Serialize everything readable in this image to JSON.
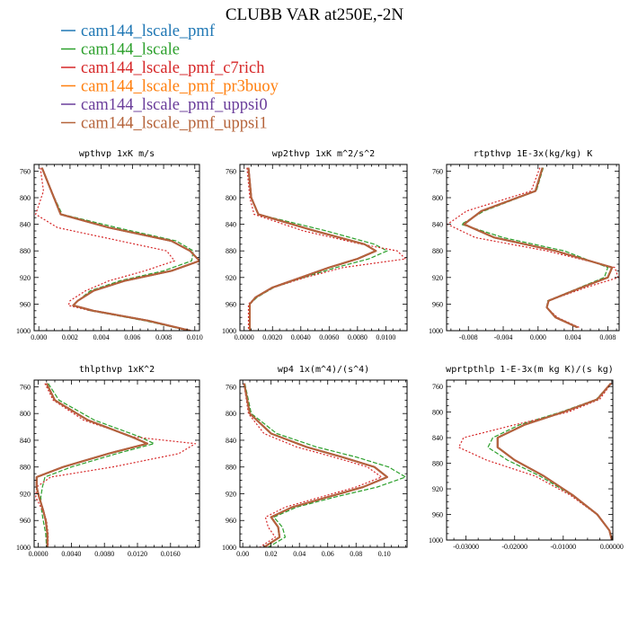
{
  "title": "CLUBB VAR at250E,-2N",
  "legend": [
    {
      "label": "cam144_lscale_pmf",
      "color": "#1f77b4",
      "dash": "solid"
    },
    {
      "label": "cam144_lscale",
      "color": "#2ca02c",
      "dash": "dashed"
    },
    {
      "label": "cam144_lscale_pmf_c7rich",
      "color": "#d62728",
      "dash": "dotted"
    },
    {
      "label": "cam144_lscale_pmf_pr3buoy",
      "color": "#ff7f0e",
      "dash": "solid"
    },
    {
      "label": "cam144_lscale_pmf_uppsi0",
      "color": "#6a3d9a",
      "dash": "solid"
    },
    {
      "label": "cam144_lscale_pmf_uppsi1",
      "color": "#b5633a",
      "dash": "solid"
    }
  ],
  "chart_data": [
    {
      "type": "line",
      "title": "wpthvp  1xK m/s",
      "xlim": [
        -0.0003,
        0.0103
      ],
      "xticks": [
        0.0,
        0.002,
        0.004,
        0.006,
        0.008,
        0.01
      ],
      "xticklabels": [
        "0.000",
        "0.002",
        "0.004",
        "0.006",
        "0.008",
        "0.010"
      ],
      "ylim": [
        1000,
        750
      ],
      "yticks": [
        760,
        800,
        840,
        880,
        920,
        960,
        1000
      ],
      "yticklabels": [
        "760",
        "800",
        "840",
        "880",
        "920",
        "960",
        "1000"
      ],
      "y": [
        755,
        790,
        825,
        845,
        865,
        880,
        895,
        910,
        925,
        940,
        955,
        962,
        970,
        985,
        1000
      ],
      "series": [
        {
          "name": "cam144_lscale_pmf",
          "values": [
            0.0002,
            0.0008,
            0.0014,
            0.0045,
            0.0085,
            0.0097,
            0.0103,
            0.0085,
            0.0055,
            0.0035,
            0.0025,
            0.0022,
            0.0035,
            0.007,
            0.0097
          ]
        },
        {
          "name": "cam144_lscale",
          "values": [
            0.0002,
            0.0008,
            0.0015,
            0.005,
            0.0088,
            0.0099,
            0.0098,
            0.008,
            0.0052,
            0.0033,
            0.0025,
            0.0022,
            0.0033,
            0.0068,
            0.0096
          ]
        },
        {
          "name": "cam144_lscale_pmf_c7rich",
          "values": [
            0.0001,
            0.0003,
            -0.0002,
            0.0012,
            0.0052,
            0.0082,
            0.0087,
            0.0068,
            0.0045,
            0.003,
            0.002,
            0.0019,
            0.0033,
            0.007,
            0.0098
          ]
        },
        {
          "name": "cam144_lscale_pmf_pr3buoy",
          "values": [
            0.0002,
            0.0008,
            0.0014,
            0.0045,
            0.0085,
            0.0097,
            0.0103,
            0.0085,
            0.0055,
            0.0035,
            0.0025,
            0.0022,
            0.0035,
            0.007,
            0.0097
          ]
        },
        {
          "name": "cam144_lscale_pmf_uppsi0",
          "values": [
            0.0002,
            0.0008,
            0.0014,
            0.0045,
            0.0085,
            0.0097,
            0.0103,
            0.0085,
            0.0055,
            0.0035,
            0.0025,
            0.0022,
            0.0035,
            0.007,
            0.0097
          ]
        },
        {
          "name": "cam144_lscale_pmf_uppsi1",
          "values": [
            0.0002,
            0.0008,
            0.0014,
            0.0045,
            0.0085,
            0.0097,
            0.0103,
            0.0085,
            0.0055,
            0.0035,
            0.0025,
            0.0022,
            0.0035,
            0.007,
            0.0097
          ]
        }
      ]
    },
    {
      "type": "line",
      "title": "wp2thvp  1xK m^2/s^2",
      "xlim": [
        -0.0003,
        0.0115
      ],
      "xticks": [
        0.0,
        0.002,
        0.004,
        0.006,
        0.008,
        0.01
      ],
      "xticklabels": [
        "0.0000",
        "0.0020",
        "0.0040",
        "0.0060",
        "0.0080",
        "0.0100"
      ],
      "ylim": [
        1000,
        750
      ],
      "yticks": [
        760,
        800,
        840,
        880,
        920,
        960,
        1000
      ],
      "yticklabels": [
        "760",
        "800",
        "840",
        "880",
        "920",
        "960",
        "1000"
      ],
      "y": [
        755,
        800,
        825,
        850,
        870,
        880,
        892,
        905,
        920,
        935,
        950,
        960,
        980,
        1000
      ],
      "series": [
        {
          "name": "cam144_lscale_pmf",
          "values": [
            0.0003,
            0.0005,
            0.001,
            0.005,
            0.0085,
            0.0093,
            0.008,
            0.006,
            0.004,
            0.002,
            0.0008,
            0.0004,
            0.0004,
            0.0004
          ]
        },
        {
          "name": "cam144_lscale",
          "values": [
            0.0003,
            0.0005,
            0.001,
            0.0058,
            0.0092,
            0.0101,
            0.0088,
            0.0065,
            0.0042,
            0.0021,
            0.0009,
            0.0004,
            0.0004,
            0.0004
          ]
        },
        {
          "name": "cam144_lscale_pmf_c7rich",
          "values": [
            0.0002,
            0.0004,
            0.0007,
            0.0042,
            0.0083,
            0.0108,
            0.0114,
            0.007,
            0.0043,
            0.0021,
            0.0008,
            0.0003,
            0.0003,
            0.0003
          ]
        },
        {
          "name": "cam144_lscale_pmf_pr3buoy",
          "values": [
            0.0003,
            0.0005,
            0.001,
            0.005,
            0.0085,
            0.0093,
            0.008,
            0.006,
            0.004,
            0.002,
            0.0008,
            0.0004,
            0.0004,
            0.0004
          ]
        },
        {
          "name": "cam144_lscale_pmf_uppsi0",
          "values": [
            0.0003,
            0.0005,
            0.001,
            0.005,
            0.0085,
            0.0093,
            0.008,
            0.006,
            0.004,
            0.002,
            0.0008,
            0.0004,
            0.0004,
            0.0004
          ]
        },
        {
          "name": "cam144_lscale_pmf_uppsi1",
          "values": [
            0.0003,
            0.0005,
            0.001,
            0.005,
            0.0085,
            0.0093,
            0.008,
            0.006,
            0.004,
            0.002,
            0.0008,
            0.0004,
            0.0004,
            0.0004
          ]
        }
      ]
    },
    {
      "type": "line",
      "title": "rtpthvp  1E-3x(kg/kg) K",
      "xlim": [
        -0.0105,
        0.0093
      ],
      "xticks": [
        -0.008,
        -0.004,
        0.0,
        0.004,
        0.008
      ],
      "xticklabels": [
        "-0.008",
        "-0.004",
        "0.000",
        "0.004",
        "0.008"
      ],
      "ylim": [
        1000,
        750
      ],
      "yticks": [
        760,
        800,
        840,
        880,
        920,
        960,
        1000
      ],
      "yticklabels": [
        "760",
        "800",
        "840",
        "880",
        "920",
        "960",
        "1000"
      ],
      "y": [
        755,
        790,
        820,
        840,
        860,
        880,
        905,
        920,
        935,
        955,
        965,
        980,
        995
      ],
      "series": [
        {
          "name": "cam144_lscale_pmf",
          "values": [
            0.0005,
            -0.0003,
            -0.0065,
            -0.0085,
            -0.005,
            0.002,
            0.0085,
            0.008,
            0.005,
            0.0012,
            0.001,
            0.002,
            0.0045
          ]
        },
        {
          "name": "cam144_lscale",
          "values": [
            0.0006,
            -0.0002,
            -0.0062,
            -0.0088,
            -0.004,
            0.003,
            0.008,
            0.0076,
            0.0048,
            0.0011,
            0.001,
            0.0021,
            0.0046
          ]
        },
        {
          "name": "cam144_lscale_pmf_c7rich",
          "values": [
            0.0002,
            -0.0008,
            -0.0082,
            -0.0104,
            -0.0072,
            0.001,
            0.0088,
            0.0092,
            0.0055,
            0.0012,
            0.001,
            0.0022,
            0.0047
          ]
        },
        {
          "name": "cam144_lscale_pmf_pr3buoy",
          "values": [
            0.0005,
            -0.0003,
            -0.0065,
            -0.0085,
            -0.005,
            0.002,
            0.0085,
            0.008,
            0.005,
            0.0012,
            0.001,
            0.002,
            0.0045
          ]
        },
        {
          "name": "cam144_lscale_pmf_uppsi0",
          "values": [
            0.0005,
            -0.0003,
            -0.0065,
            -0.0085,
            -0.005,
            0.002,
            0.0085,
            0.008,
            0.005,
            0.0012,
            0.001,
            0.002,
            0.0045
          ]
        },
        {
          "name": "cam144_lscale_pmf_uppsi1",
          "values": [
            0.0005,
            -0.0003,
            -0.0065,
            -0.0085,
            -0.005,
            0.002,
            0.0085,
            0.008,
            0.005,
            0.0012,
            0.001,
            0.002,
            0.0045
          ]
        }
      ]
    },
    {
      "type": "line",
      "title": "thlpthvp  1xK^2",
      "xlim": [
        -0.0005,
        0.0195
      ],
      "xticks": [
        0.0,
        0.004,
        0.008,
        0.012,
        0.016
      ],
      "xticklabels": [
        "0.0000",
        "0.0040",
        "0.0080",
        "0.0120",
        "0.0160"
      ],
      "ylim": [
        1000,
        750
      ],
      "yticks": [
        760,
        800,
        840,
        880,
        920,
        960,
        1000
      ],
      "yticklabels": [
        "760",
        "800",
        "840",
        "880",
        "920",
        "960",
        "1000"
      ],
      "y": [
        755,
        780,
        810,
        835,
        845,
        860,
        880,
        895,
        910,
        925,
        945,
        960,
        980,
        1000
      ],
      "series": [
        {
          "name": "cam144_lscale_pmf",
          "values": [
            0.001,
            0.002,
            0.006,
            0.0113,
            0.0132,
            0.0085,
            0.003,
            -0.0002,
            -0.0002,
            0.0001,
            0.0006,
            0.0009,
            0.0011,
            0.0011
          ]
        },
        {
          "name": "cam144_lscale",
          "values": [
            0.0012,
            0.0025,
            0.0068,
            0.0123,
            0.014,
            0.0095,
            0.004,
            0.0008,
            0.0005,
            0.0003,
            0.0004,
            0.0006,
            0.0009,
            0.001
          ]
        },
        {
          "name": "cam144_lscale_pmf_c7rich",
          "values": [
            0.0008,
            0.0018,
            0.0055,
            0.0115,
            0.019,
            0.017,
            0.009,
            0.0015,
            -0.0002,
            -0.0003,
            0.0005,
            0.001,
            0.0012,
            0.0012
          ]
        },
        {
          "name": "cam144_lscale_pmf_pr3buoy",
          "values": [
            0.001,
            0.002,
            0.006,
            0.0113,
            0.0132,
            0.0085,
            0.003,
            -0.0002,
            -0.0002,
            0.0001,
            0.0006,
            0.0009,
            0.0011,
            0.0011
          ]
        },
        {
          "name": "cam144_lscale_pmf_uppsi0",
          "values": [
            0.001,
            0.002,
            0.006,
            0.0113,
            0.0132,
            0.0085,
            0.003,
            -0.0002,
            -0.0002,
            0.0001,
            0.0006,
            0.0009,
            0.0011,
            0.0011
          ]
        },
        {
          "name": "cam144_lscale_pmf_uppsi1",
          "values": [
            0.001,
            0.002,
            0.006,
            0.0113,
            0.0132,
            0.0085,
            0.003,
            -0.0002,
            -0.0002,
            0.0001,
            0.0006,
            0.0009,
            0.0011,
            0.0011
          ]
        }
      ]
    },
    {
      "type": "line",
      "title": "wp4  1x(m^4)/(s^4)",
      "xlim": [
        -0.002,
        0.116
      ],
      "xticks": [
        0.0,
        0.02,
        0.04,
        0.06,
        0.08,
        0.1
      ],
      "xticklabels": [
        "0.00",
        "0.02",
        "0.04",
        "0.06",
        "0.08",
        "0.10"
      ],
      "ylim": [
        1000,
        750
      ],
      "yticks": [
        760,
        800,
        840,
        880,
        920,
        960,
        1000
      ],
      "yticklabels": [
        "760",
        "800",
        "840",
        "880",
        "920",
        "960",
        "1000"
      ],
      "y": [
        755,
        800,
        830,
        850,
        865,
        880,
        895,
        910,
        925,
        940,
        955,
        970,
        985,
        1000
      ],
      "series": [
        {
          "name": "cam144_lscale_pmf",
          "values": [
            0.001,
            0.005,
            0.02,
            0.045,
            0.07,
            0.093,
            0.102,
            0.085,
            0.06,
            0.035,
            0.02,
            0.025,
            0.026,
            0.015
          ]
        },
        {
          "name": "cam144_lscale",
          "values": [
            0.0015,
            0.006,
            0.024,
            0.052,
            0.08,
            0.103,
            0.115,
            0.095,
            0.065,
            0.038,
            0.022,
            0.028,
            0.03,
            0.018
          ]
        },
        {
          "name": "cam144_lscale_pmf_c7rich",
          "values": [
            0.0008,
            0.004,
            0.015,
            0.038,
            0.064,
            0.088,
            0.098,
            0.08,
            0.055,
            0.03,
            0.016,
            0.018,
            0.023,
            0.012
          ]
        },
        {
          "name": "cam144_lscale_pmf_pr3buoy",
          "values": [
            0.001,
            0.005,
            0.02,
            0.045,
            0.07,
            0.093,
            0.102,
            0.085,
            0.06,
            0.035,
            0.02,
            0.025,
            0.026,
            0.015
          ]
        },
        {
          "name": "cam144_lscale_pmf_uppsi0",
          "values": [
            0.001,
            0.005,
            0.02,
            0.045,
            0.07,
            0.093,
            0.102,
            0.085,
            0.06,
            0.035,
            0.02,
            0.025,
            0.026,
            0.015
          ]
        },
        {
          "name": "cam144_lscale_pmf_uppsi1",
          "values": [
            0.001,
            0.005,
            0.02,
            0.045,
            0.07,
            0.093,
            0.102,
            0.085,
            0.06,
            0.035,
            0.02,
            0.025,
            0.026,
            0.015
          ]
        }
      ]
    },
    {
      "type": "line",
      "title": "wprtpthlp  1-E-3x(m kg K)/(s kg)",
      "xlim": [
        -0.034,
        0.0002
      ],
      "xticks": [
        -0.03,
        -0.02,
        -0.01,
        0.0
      ],
      "xticklabels": [
        "-0.03000",
        "-0.02000",
        "-0.01000",
        "0.00000"
      ],
      "ylim": [
        1000,
        750
      ],
      "yticks": [
        760,
        800,
        840,
        880,
        920,
        960,
        1000
      ],
      "yticklabels": [
        "760",
        "800",
        "840",
        "880",
        "920",
        "960",
        "1000"
      ],
      "y": [
        755,
        780,
        800,
        820,
        840,
        855,
        875,
        900,
        930,
        960,
        985,
        1000
      ],
      "series": [
        {
          "name": "cam144_lscale_pmf",
          "values": [
            -0.0002,
            -0.003,
            -0.01,
            -0.018,
            -0.0235,
            -0.0235,
            -0.02,
            -0.014,
            -0.008,
            -0.003,
            -0.0005,
            0.0
          ]
        },
        {
          "name": "cam144_lscale",
          "values": [
            -0.0002,
            -0.0032,
            -0.0105,
            -0.019,
            -0.0245,
            -0.0255,
            -0.0215,
            -0.0148,
            -0.0082,
            -0.0031,
            -0.0005,
            0.0
          ]
        },
        {
          "name": "cam144_lscale_pmf_c7rich",
          "values": [
            -0.0001,
            -0.0025,
            -0.009,
            -0.02,
            -0.0305,
            -0.0315,
            -0.0258,
            -0.0158,
            -0.0085,
            -0.0031,
            -0.0005,
            0.0
          ]
        },
        {
          "name": "cam144_lscale_pmf_pr3buoy",
          "values": [
            -0.0002,
            -0.003,
            -0.01,
            -0.018,
            -0.0235,
            -0.0235,
            -0.02,
            -0.014,
            -0.008,
            -0.003,
            -0.0005,
            0.0
          ]
        },
        {
          "name": "cam144_lscale_pmf_uppsi0",
          "values": [
            -0.0002,
            -0.003,
            -0.01,
            -0.018,
            -0.0235,
            -0.0235,
            -0.02,
            -0.014,
            -0.008,
            -0.003,
            -0.0005,
            0.0
          ]
        },
        {
          "name": "cam144_lscale_pmf_uppsi1",
          "values": [
            -0.0002,
            -0.003,
            -0.01,
            -0.018,
            -0.0235,
            -0.0235,
            -0.02,
            -0.014,
            -0.008,
            -0.003,
            -0.0005,
            0.0
          ]
        }
      ]
    }
  ]
}
